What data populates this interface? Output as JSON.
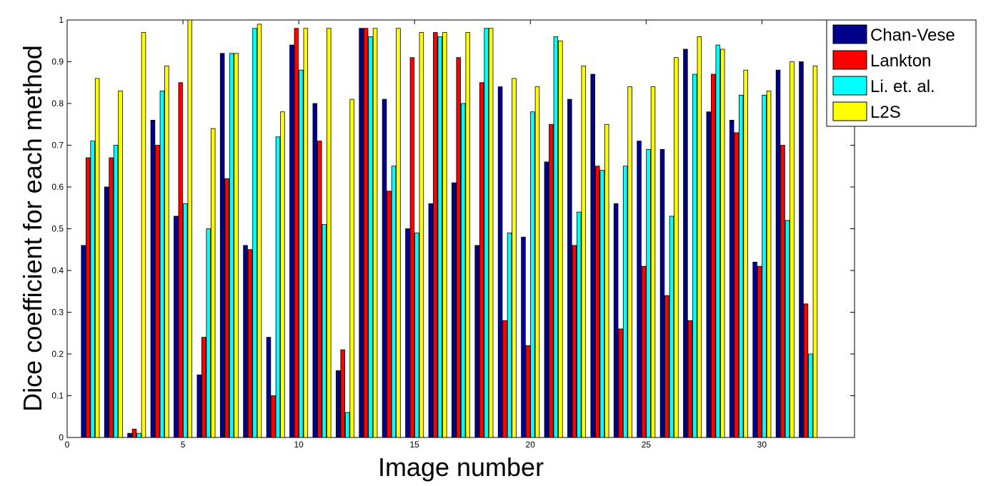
{
  "chart_data": {
    "type": "bar",
    "title": "",
    "xlabel": "Image number",
    "ylabel": "Dice coefficient for each method",
    "xlim": [
      0,
      34
    ],
    "ylim": [
      0,
      1
    ],
    "xticks": [
      0,
      5,
      10,
      15,
      20,
      25,
      30
    ],
    "yticks": [
      0,
      0.1,
      0.2,
      0.3,
      0.4,
      0.5,
      0.6,
      0.7,
      0.8,
      0.9,
      1
    ],
    "ytick_labels": [
      "0",
      "0.1",
      "0.2",
      "0.3",
      "0.4",
      "0.5",
      "0.6",
      "0.7",
      "0.8",
      "0.9",
      "1"
    ],
    "legend_position": "top-right",
    "categories": [
      1,
      2,
      3,
      4,
      5,
      6,
      7,
      8,
      9,
      10,
      11,
      12,
      13,
      14,
      15,
      16,
      17,
      18,
      19,
      20,
      21,
      22,
      23,
      24,
      25,
      26,
      27,
      28,
      29,
      30,
      31,
      32
    ],
    "series": [
      {
        "name": "Chan-Vese",
        "color": "#00008b",
        "values": [
          0.46,
          0.6,
          0.01,
          0.76,
          0.53,
          0.15,
          0.92,
          0.46,
          0.24,
          0.94,
          0.8,
          0.16,
          0.98,
          0.81,
          0.5,
          0.56,
          0.61,
          0.46,
          0.84,
          0.48,
          0.66,
          0.81,
          0.87,
          0.56,
          0.71,
          0.69,
          0.93,
          0.78,
          0.76,
          0.42,
          0.88,
          0.9
        ]
      },
      {
        "name": "Lankton",
        "color": "#ff0000",
        "values": [
          0.67,
          0.67,
          0.02,
          0.7,
          0.85,
          0.24,
          0.62,
          0.45,
          0.1,
          0.98,
          0.71,
          0.21,
          0.98,
          0.59,
          0.91,
          0.97,
          0.91,
          0.85,
          0.28,
          0.22,
          0.75,
          0.46,
          0.65,
          0.26,
          0.41,
          0.34,
          0.28,
          0.87,
          0.73,
          0.41,
          0.7,
          0.32
        ]
      },
      {
        "name": "Li. et. al.",
        "color": "#00ffff",
        "values": [
          0.71,
          0.7,
          0.01,
          0.83,
          0.56,
          0.5,
          0.92,
          0.98,
          0.72,
          0.88,
          0.51,
          0.06,
          0.96,
          0.65,
          0.49,
          0.96,
          0.8,
          0.98,
          0.49,
          0.78,
          0.96,
          0.54,
          0.64,
          0.65,
          0.69,
          0.53,
          0.87,
          0.94,
          0.82,
          0.82,
          0.52,
          0.2
        ]
      },
      {
        "name": "L2S",
        "color": "#ffff00",
        "values": [
          0.86,
          0.83,
          0.97,
          0.89,
          1.0,
          0.74,
          0.92,
          0.99,
          0.78,
          0.98,
          0.98,
          0.81,
          0.98,
          0.98,
          0.97,
          0.97,
          0.97,
          0.98,
          0.86,
          0.84,
          0.95,
          0.89,
          0.75,
          0.84,
          0.84,
          0.91,
          0.96,
          0.93,
          0.88,
          0.83,
          0.9,
          0.89
        ]
      }
    ]
  }
}
